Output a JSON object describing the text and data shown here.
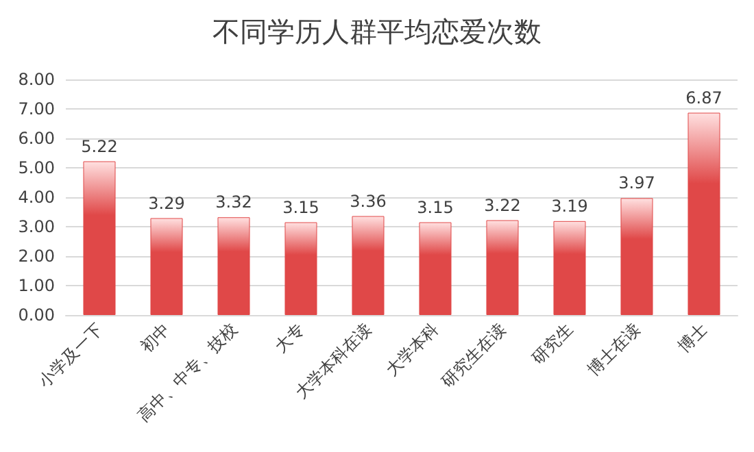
{
  "chart_data": {
    "type": "bar",
    "title": "不同学历人群平均恋爱次数",
    "categories": [
      "小学及一下",
      "初中",
      "高中、中专、技校",
      "大专",
      "大学本科在读",
      "大学本科",
      "研究生在读",
      "研究生",
      "博士在读",
      "博士"
    ],
    "values": [
      5.22,
      3.29,
      3.32,
      3.15,
      3.36,
      3.15,
      3.22,
      3.19,
      3.97,
      6.87
    ],
    "color": "#e04848",
    "ylim": [
      0,
      8
    ],
    "yticks": [
      {
        "value": 0,
        "label": "0.00"
      },
      {
        "value": 1,
        "label": "1.00"
      },
      {
        "value": 2,
        "label": "2.00"
      },
      {
        "value": 3,
        "label": "3.00"
      },
      {
        "value": 4,
        "label": "4.00"
      },
      {
        "value": 5,
        "label": "5.00"
      },
      {
        "value": 6,
        "label": "6.00"
      },
      {
        "value": 7,
        "label": "7.00"
      },
      {
        "value": 8,
        "label": "8.00"
      }
    ],
    "grid": "y",
    "data_labels": true
  }
}
